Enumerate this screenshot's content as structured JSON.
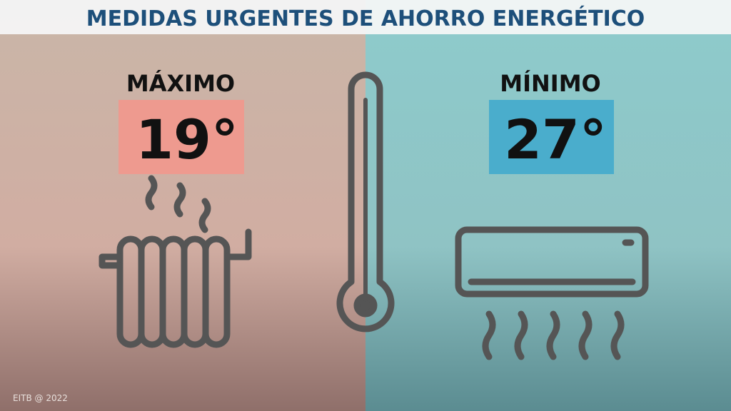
{
  "header": {
    "title": "MEDIDAS URGENTES DE AHORRO ENERGÉTICO"
  },
  "left": {
    "label": "MÁXIMO",
    "value": "19°"
  },
  "right": {
    "label": "MÍNIMO",
    "value": "27°"
  },
  "footer": {
    "credit": "EITB @ 2022"
  }
}
